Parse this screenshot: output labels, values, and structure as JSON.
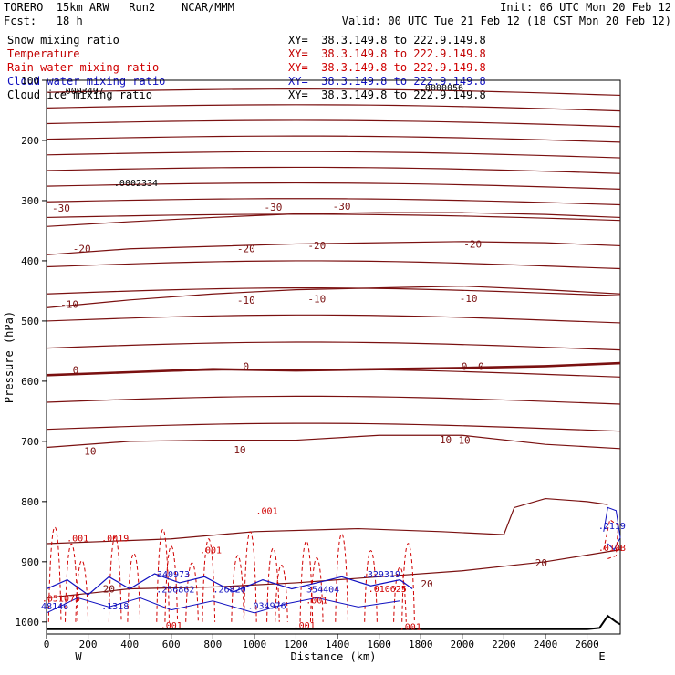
{
  "header": {
    "model": "TORERO  15km ARW   Run2    NCAR/MMM",
    "init": "Init: 06 UTC Mon 20 Feb 12",
    "fcst": "Fcst:   18 h",
    "valid": "Valid: 00 UTC Tue 21 Feb 12 (18 CST Mon 20 Feb 12)"
  },
  "fields": [
    {
      "name": "Snow mixing ratio",
      "xy": "XY=  38.3.149.8 to 222.9.149.8",
      "color": "#000000"
    },
    {
      "name": "Temperature",
      "xy": "XY=  38.3.149.8 to 222.9.149.8",
      "color": "#c00000"
    },
    {
      "name": "Rain water mixing ratio",
      "xy": "XY=  38.3.149.8 to 222.9.149.8",
      "color": "#d00000"
    },
    {
      "name": "Cloud water mixing ratio",
      "xy": "XY=  38.3.149.8 to 222.9.149.8",
      "color": "#1010c0"
    },
    {
      "name": "Cloud ice mixing ratio",
      "xy": "XY=  38.3.149.8 to 222.9.149.8",
      "color": "#000000"
    }
  ],
  "chart_data": {
    "type": "cross-section",
    "xlabel": "Distance (km)",
    "ylabel": "Pressure (hPa)",
    "xlim": [
      0,
      2760
    ],
    "ylim": [
      1020,
      100
    ],
    "xticks": [
      "0",
      "200",
      "400",
      "600",
      "800",
      "1000",
      "1200",
      "1400",
      "1600",
      "1800",
      "2000",
      "2200",
      "2400",
      "2600"
    ],
    "yticks": [
      "100",
      "200",
      "300",
      "400",
      "500",
      "600",
      "700",
      "800",
      "900",
      "1000"
    ],
    "endpoints": {
      "west": "W",
      "east": "E"
    },
    "temperature_contours": [
      {
        "label": "-30",
        "x": [
          0,
          400,
          800,
          1200,
          1600,
          2000,
          2400,
          2760
        ],
        "p": [
          343,
          335,
          328,
          322,
          320,
          320,
          323,
          328
        ]
      },
      {
        "label": "-20",
        "x": [
          0,
          400,
          800,
          1200,
          1600,
          2000,
          2400,
          2760
        ],
        "p": [
          390,
          380,
          376,
          372,
          370,
          368,
          370,
          375
        ]
      },
      {
        "label": "-10",
        "x": [
          0,
          400,
          800,
          1200,
          1600,
          2000,
          2400,
          2760
        ],
        "p": [
          478,
          465,
          455,
          448,
          445,
          442,
          448,
          455
        ]
      },
      {
        "label": "0",
        "x": [
          0,
          400,
          800,
          1200,
          1600,
          2000,
          2400,
          2760
        ],
        "p": [
          590,
          585,
          580,
          582,
          580,
          578,
          575,
          570
        ]
      },
      {
        "label": "10",
        "x": [
          0,
          400,
          800,
          1200,
          1600,
          2000,
          2400,
          2760
        ],
        "p": [
          710,
          700,
          698,
          698,
          690,
          690,
          705,
          712
        ]
      },
      {
        "label": "20",
        "x": [
          0,
          400,
          800,
          1200,
          1600,
          2000,
          2400,
          2760
        ],
        "p": [
          960,
          945,
          942,
          935,
          925,
          915,
          900,
          880
        ]
      }
    ],
    "contour_labels": [
      {
        "text": "-30",
        "x": 70,
        "p": 312
      },
      {
        "text": "-30",
        "x": 1090,
        "p": 311
      },
      {
        "text": "-30",
        "x": 1420,
        "p": 309
      },
      {
        "text": "-20",
        "x": 170,
        "p": 380
      },
      {
        "text": "-20",
        "x": 960,
        "p": 380
      },
      {
        "text": "-20",
        "x": 1300,
        "p": 374
      },
      {
        "text": "-20",
        "x": 2050,
        "p": 372
      },
      {
        "text": "-10",
        "x": 110,
        "p": 472
      },
      {
        "text": "-10",
        "x": 960,
        "p": 465
      },
      {
        "text": "-10",
        "x": 1300,
        "p": 463
      },
      {
        "text": "-10",
        "x": 2030,
        "p": 462
      },
      {
        "text": "0",
        "x": 140,
        "p": 581
      },
      {
        "text": "0",
        "x": 960,
        "p": 575
      },
      {
        "text": "0",
        "x": 2010,
        "p": 575
      },
      {
        "text": "0",
        "x": 2090,
        "p": 575
      },
      {
        "text": "10",
        "x": 210,
        "p": 716
      },
      {
        "text": "10",
        "x": 930,
        "p": 714
      },
      {
        "text": "10",
        "x": 1920,
        "p": 697
      },
      {
        "text": "10",
        "x": 2010,
        "p": 698
      },
      {
        "text": "20",
        "x": 1830,
        "p": 937
      },
      {
        "text": "20",
        "x": 2380,
        "p": 902
      },
      {
        "text": "20",
        "x": 300,
        "p": 945
      }
    ],
    "annotations": [
      {
        "text": ".0003497",
        "x": 170,
        "p": 117,
        "color": "#000000"
      },
      {
        "text": ".0002334",
        "x": 430,
        "p": 270,
        "color": "#000000"
      },
      {
        "text": ".0000056",
        "x": 1900,
        "p": 111,
        "color": "#000000"
      },
      {
        "text": ".001",
        "x": 150,
        "p": 860,
        "color": "#d00000"
      },
      {
        "text": ".0019",
        "x": 330,
        "p": 860,
        "color": "#d00000"
      },
      {
        "text": ".001",
        "x": 790,
        "p": 880,
        "color": "#d00000"
      },
      {
        "text": ".001",
        "x": 1060,
        "p": 815,
        "color": "#d00000"
      },
      {
        "text": ".051075",
        "x": 70,
        "p": 960,
        "color": "#d00000"
      },
      {
        "text": "48146",
        "x": 40,
        "p": 973,
        "color": "#1010c0"
      },
      {
        "text": ".1318",
        "x": 330,
        "p": 973,
        "color": "#1010c0"
      },
      {
        "text": "340973",
        "x": 610,
        "p": 920,
        "color": "#1010c0"
      },
      {
        "text": ".256862",
        "x": 620,
        "p": 945,
        "color": "#1010c0"
      },
      {
        "text": ".26820",
        "x": 880,
        "p": 945,
        "color": "#1010c0"
      },
      {
        "text": ".034976",
        "x": 1060,
        "p": 972,
        "color": "#1010c0"
      },
      {
        "text": ".001",
        "x": 1300,
        "p": 963,
        "color": "#d00000"
      },
      {
        "text": "354404",
        "x": 1330,
        "p": 945,
        "color": "#1010c0"
      },
      {
        "text": ".329319",
        "x": 1610,
        "p": 920,
        "color": "#1010c0"
      },
      {
        "text": ".010625",
        "x": 1640,
        "p": 944,
        "color": "#d00000"
      },
      {
        "text": ".001",
        "x": 600,
        "p": 1005,
        "color": "#d00000"
      },
      {
        "text": ".001",
        "x": 1240,
        "p": 1005,
        "color": "#d00000"
      },
      {
        "text": ".001",
        "x": 1750,
        "p": 1007,
        "color": "#d00000"
      },
      {
        "text": ".2119",
        "x": 2720,
        "p": 840,
        "color": "#1010c0"
      },
      {
        "text": ".010B",
        "x": 2720,
        "p": 876,
        "color": "#d00000"
      }
    ]
  }
}
